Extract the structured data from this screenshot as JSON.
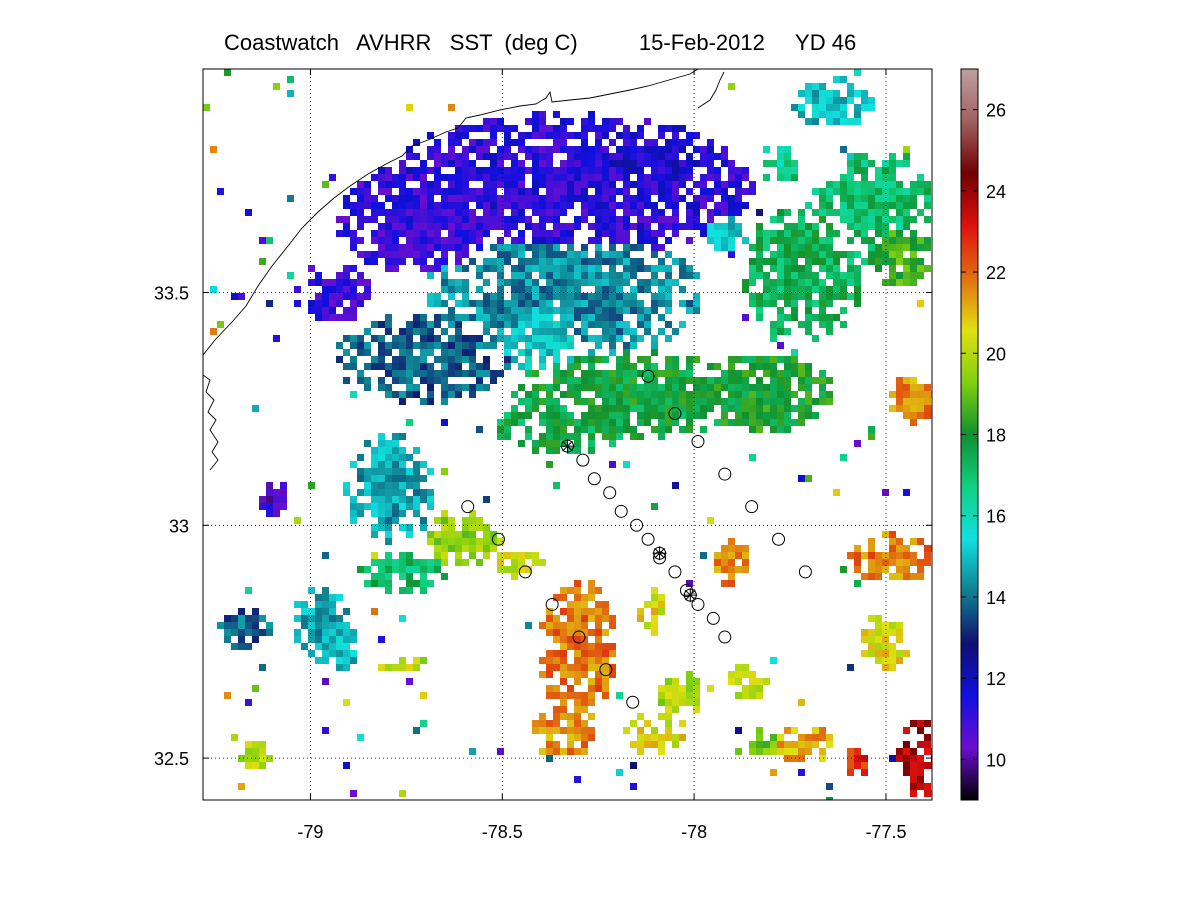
{
  "title": {
    "left": "Coastwatch   AVHRR   SST  (deg C)",
    "date": "15-Feb-2012",
    "yearday": "YD 46"
  },
  "axes": {
    "lon_ticks": [
      "-79",
      "-78.5",
      "-78",
      "-77.5"
    ],
    "lat_ticks": [
      "33.5",
      "33",
      "32.5"
    ],
    "lon_range": [
      -79.28,
      -77.38
    ],
    "lat_range": [
      32.41,
      33.98
    ]
  },
  "colorbar": {
    "ticks": [
      "10",
      "12",
      "14",
      "16",
      "18",
      "20",
      "22",
      "24",
      "26"
    ],
    "range": [
      9,
      27
    ],
    "colors": [
      "#000000",
      "#6a0fd0",
      "#1010e0",
      "#101070",
      "#108090",
      "#10e0e0",
      "#10d080",
      "#109030",
      "#80d010",
      "#e0e010",
      "#e07010",
      "#e01010",
      "#700000",
      "#a06060",
      "#c0a0a0"
    ]
  },
  "chart_data": {
    "type": "map",
    "title": "Coastwatch   AVHRR   SST  (deg C)",
    "date": "15-Feb-2012",
    "yearday": "YD 46",
    "xlim": [
      -79.28,
      -77.38
    ],
    "ylim": [
      32.41,
      33.98
    ],
    "colorbar_range": [
      9,
      27
    ],
    "stations_circle": [
      [
        -78.12,
        33.32
      ],
      [
        -78.05,
        33.24
      ],
      [
        -77.99,
        33.18
      ],
      [
        -77.92,
        33.11
      ],
      [
        -77.85,
        33.04
      ],
      [
        -77.78,
        32.97
      ],
      [
        -77.71,
        32.9
      ],
      [
        -78.59,
        33.04
      ],
      [
        -78.51,
        32.97
      ],
      [
        -78.44,
        32.9
      ],
      [
        -78.37,
        32.83
      ],
      [
        -78.3,
        32.76
      ],
      [
        -78.23,
        32.69
      ],
      [
        -78.16,
        32.62
      ],
      [
        -78.29,
        33.14
      ],
      [
        -78.26,
        33.1
      ],
      [
        -78.22,
        33.07
      ],
      [
        -78.19,
        33.03
      ],
      [
        -78.15,
        33.0
      ],
      [
        -78.12,
        32.97
      ],
      [
        -78.09,
        32.93
      ],
      [
        -78.05,
        32.9
      ],
      [
        -78.02,
        32.86
      ],
      [
        -77.99,
        32.83
      ],
      [
        -77.95,
        32.8
      ],
      [
        -77.92,
        32.76
      ]
    ],
    "stations_star": [
      [
        -78.33,
        33.17
      ],
      [
        -78.09,
        32.94
      ],
      [
        -78.01,
        32.85
      ]
    ]
  }
}
